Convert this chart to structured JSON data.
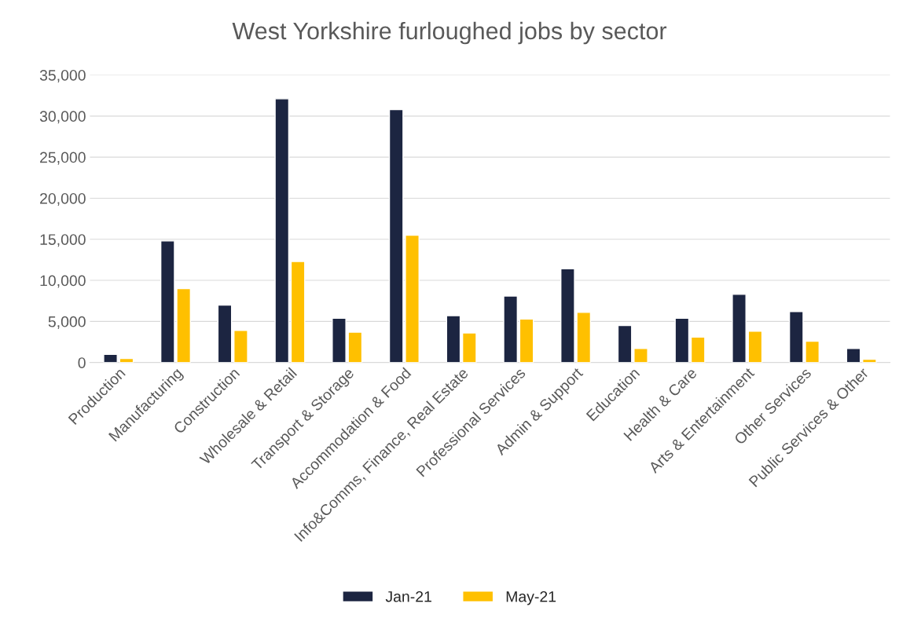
{
  "chart_data": {
    "type": "bar",
    "title": "West Yorkshire furloughed jobs by sector",
    "categories": [
      "Production",
      "Manufacturing",
      "Construction",
      "Wholesale & Retail",
      "Transport & Storage",
      "Accommodation & Food",
      "Info&Comms, Finance, Real Estate",
      "Professional Services",
      "Admin & Support",
      "Education",
      "Health & Care",
      "Arts & Entertainment",
      "Other Services",
      "Public Services & Other"
    ],
    "series": [
      {
        "name": "Jan-21",
        "color": "#1c2541",
        "values": [
          1000,
          14800,
          7000,
          32100,
          5400,
          30800,
          5700,
          8100,
          11400,
          4500,
          5400,
          8300,
          6200,
          1700
        ]
      },
      {
        "name": "May-21",
        "color": "#ffc000",
        "values": [
          500,
          9000,
          3900,
          12300,
          3700,
          15500,
          3600,
          5300,
          6100,
          1700,
          3100,
          3800,
          2600,
          400
        ]
      }
    ],
    "ylim": [
      0,
      35000
    ],
    "yticks": [
      {
        "value": 0,
        "label": "0"
      },
      {
        "value": 5000,
        "label": "5,000"
      },
      {
        "value": 10000,
        "label": "10,000"
      },
      {
        "value": 15000,
        "label": "15,000"
      },
      {
        "value": 20000,
        "label": "20,000"
      },
      {
        "value": 25000,
        "label": "25,000"
      },
      {
        "value": 30000,
        "label": "30,000"
      },
      {
        "value": 35000,
        "label": "35,000"
      }
    ],
    "grid": "y",
    "legend": "bottom"
  }
}
